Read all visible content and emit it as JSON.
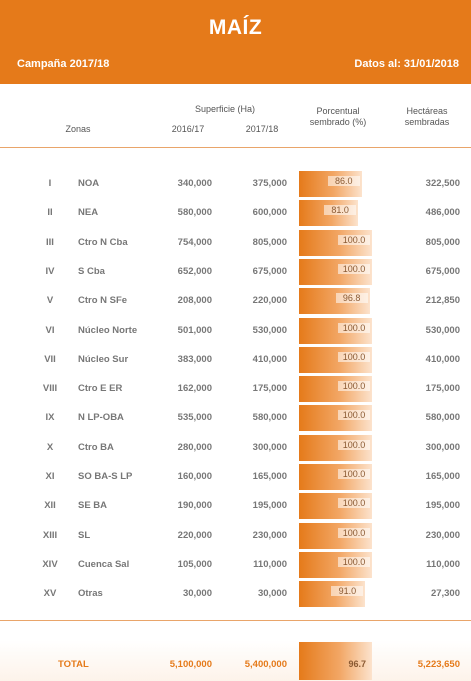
{
  "header": {
    "title": "MAÍZ",
    "campaign": "Campaña 2017/18",
    "date": "Datos al: 31/01/2018"
  },
  "columns": {
    "zonas": "Zonas",
    "superficie": "Superficie (Ha)",
    "year1": "2016/17",
    "year2": "2017/18",
    "pct_line1": "Porcentual",
    "pct_line2": "sembrado (%)",
    "ha_line1": "Hectáreas",
    "ha_line2": "sembradas"
  },
  "rows": [
    {
      "roman": "I",
      "zone": "NOA",
      "s1": "340,000",
      "s2": "375,000",
      "pct": "86.0",
      "pct_value": 86.0,
      "ha": "322,500"
    },
    {
      "roman": "II",
      "zone": "NEA",
      "s1": "580,000",
      "s2": "600,000",
      "pct": "81.0",
      "pct_value": 81.0,
      "ha": "486,000"
    },
    {
      "roman": "III",
      "zone": "Ctro N Cba",
      "s1": "754,000",
      "s2": "805,000",
      "pct": "100.0",
      "pct_value": 100.0,
      "ha": "805,000"
    },
    {
      "roman": "IV",
      "zone": "S Cba",
      "s1": "652,000",
      "s2": "675,000",
      "pct": "100.0",
      "pct_value": 100.0,
      "ha": "675,000"
    },
    {
      "roman": "V",
      "zone": "Ctro N SFe",
      "s1": "208,000",
      "s2": "220,000",
      "pct": "96.8",
      "pct_value": 96.8,
      "ha": "212,850"
    },
    {
      "roman": "VI",
      "zone": "Núcleo Norte",
      "s1": "501,000",
      "s2": "530,000",
      "pct": "100.0",
      "pct_value": 100.0,
      "ha": "530,000"
    },
    {
      "roman": "VII",
      "zone": "Núcleo Sur",
      "s1": "383,000",
      "s2": "410,000",
      "pct": "100.0",
      "pct_value": 100.0,
      "ha": "410,000"
    },
    {
      "roman": "VIII",
      "zone": "Ctro E ER",
      "s1": "162,000",
      "s2": "175,000",
      "pct": "100.0",
      "pct_value": 100.0,
      "ha": "175,000"
    },
    {
      "roman": "IX",
      "zone": "N LP-OBA",
      "s1": "535,000",
      "s2": "580,000",
      "pct": "100.0",
      "pct_value": 100.0,
      "ha": "580,000"
    },
    {
      "roman": "X",
      "zone": "Ctro BA",
      "s1": "280,000",
      "s2": "300,000",
      "pct": "100.0",
      "pct_value": 100.0,
      "ha": "300,000"
    },
    {
      "roman": "XI",
      "zone": "SO BA-S LP",
      "s1": "160,000",
      "s2": "165,000",
      "pct": "100.0",
      "pct_value": 100.0,
      "ha": "165,000"
    },
    {
      "roman": "XII",
      "zone": "SE BA",
      "s1": "190,000",
      "s2": "195,000",
      "pct": "100.0",
      "pct_value": 100.0,
      "ha": "195,000"
    },
    {
      "roman": "XIII",
      "zone": "SL",
      "s1": "220,000",
      "s2": "230,000",
      "pct": "100.0",
      "pct_value": 100.0,
      "ha": "230,000"
    },
    {
      "roman": "XIV",
      "zone": "Cuenca Sal",
      "s1": "105,000",
      "s2": "110,000",
      "pct": "100.0",
      "pct_value": 100.0,
      "ha": "110,000"
    },
    {
      "roman": "XV",
      "zone": "Otras",
      "s1": "30,000",
      "s2": "30,000",
      "pct": "91.0",
      "pct_value": 91.0,
      "ha": "27,300"
    }
  ],
  "total": {
    "label": "TOTAL",
    "s1": "5,100,000",
    "s2": "5,400,000",
    "pct": "96.7",
    "ha": "5,223,650"
  },
  "colors": {
    "accent": "#e57a1a"
  }
}
